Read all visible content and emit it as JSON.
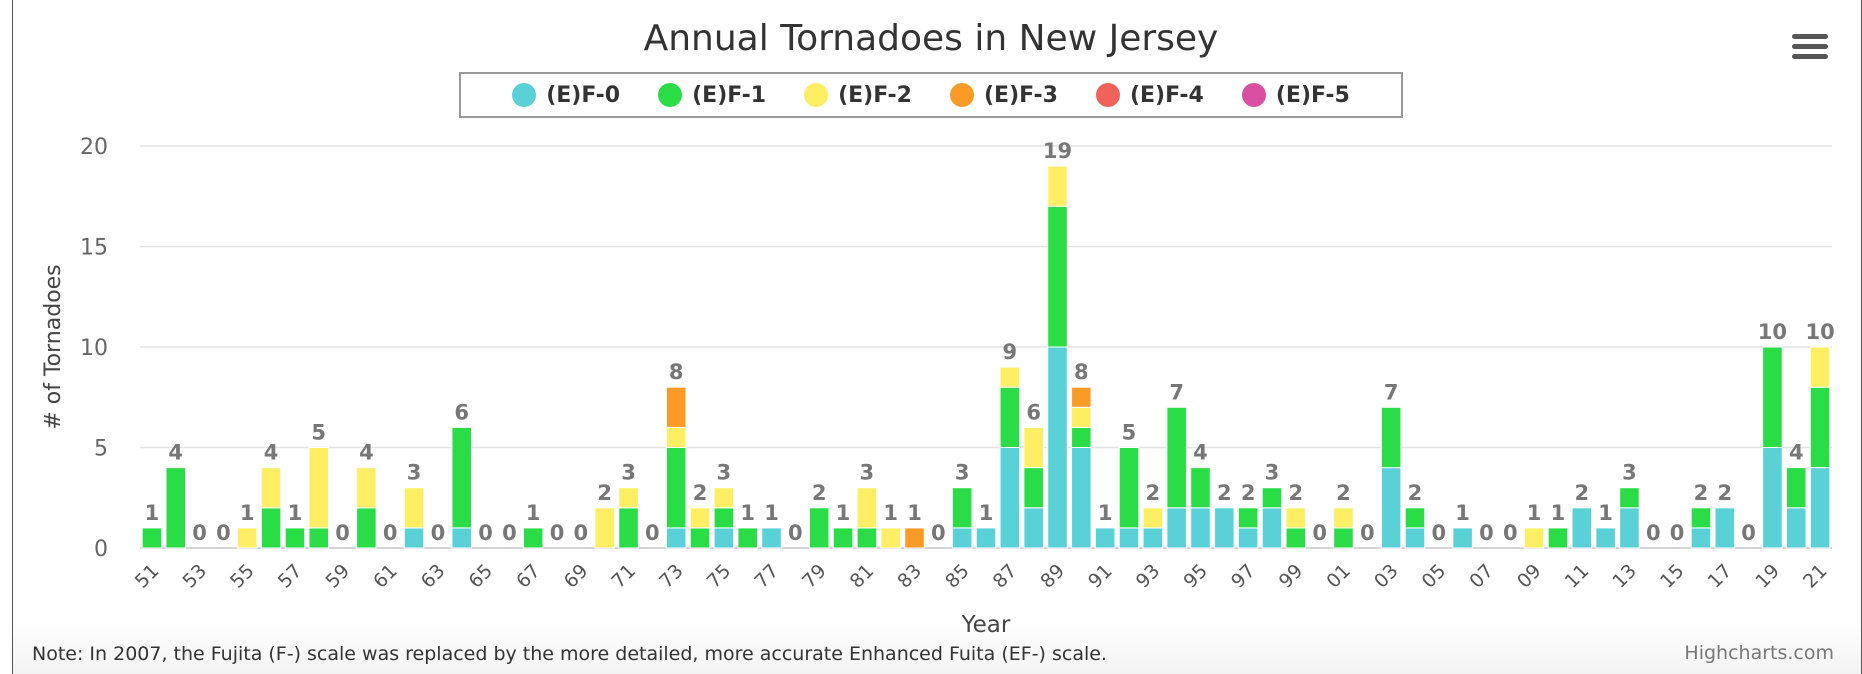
{
  "title": "Annual Tornadoes in New Jersey",
  "legend": [
    {
      "label": "(E)F-0",
      "color": "#5ad1d7"
    },
    {
      "label": "(E)F-1",
      "color": "#2adc46"
    },
    {
      "label": "(E)F-2",
      "color": "#fdee63"
    },
    {
      "label": "(E)F-3",
      "color": "#fa9a27"
    },
    {
      "label": "(E)F-4",
      "color": "#f0625a"
    },
    {
      "label": "(E)F-5",
      "color": "#d84fa4"
    }
  ],
  "menu_icon": "hamburger-menu-icon",
  "note": "Note: In 2007, the Fujita (F-) scale was replaced by the more detailed, more accurate Enhanced Fuita (EF-) scale.",
  "credits": "Highcharts.com",
  "chart_data": {
    "type": "bar",
    "stacked": true,
    "title": "Annual Tornadoes in New Jersey",
    "xlabel": "Year",
    "ylabel": "# of Tornadoes",
    "ylim": [
      0,
      20
    ],
    "yticks": [
      0,
      5,
      10,
      15,
      20
    ],
    "grid": true,
    "legend_position": "top",
    "categories": [
      "51",
      "52",
      "53",
      "54",
      "55",
      "56",
      "57",
      "58",
      "59",
      "60",
      "61",
      "62",
      "63",
      "64",
      "65",
      "66",
      "67",
      "68",
      "69",
      "70",
      "71",
      "72",
      "73",
      "74",
      "75",
      "76",
      "77",
      "78",
      "79",
      "80",
      "81",
      "82",
      "83",
      "84",
      "85",
      "86",
      "87",
      "88",
      "89",
      "90",
      "91",
      "92",
      "93",
      "94",
      "95",
      "96",
      "97",
      "98",
      "99",
      "00",
      "01",
      "02",
      "03",
      "04",
      "05",
      "06",
      "07",
      "08",
      "09",
      "10",
      "11",
      "12",
      "13",
      "14",
      "15",
      "16",
      "17",
      "18",
      "19",
      "20",
      "21"
    ],
    "xtick_labels": [
      "51",
      "53",
      "55",
      "57",
      "59",
      "61",
      "63",
      "65",
      "67",
      "69",
      "71",
      "73",
      "75",
      "77",
      "79",
      "81",
      "83",
      "85",
      "87",
      "89",
      "91",
      "93",
      "95",
      "97",
      "99",
      "01",
      "03",
      "05",
      "07",
      "09",
      "11",
      "13",
      "15",
      "17",
      "19",
      "21"
    ],
    "series": [
      {
        "name": "(E)F-0",
        "color": "#5ad1d7",
        "values": [
          0,
          0,
          0,
          0,
          0,
          0,
          0,
          0,
          0,
          0,
          0,
          1,
          0,
          1,
          0,
          0,
          0,
          0,
          0,
          0,
          0,
          0,
          1,
          0,
          1,
          0,
          1,
          0,
          0,
          0,
          0,
          0,
          0,
          0,
          1,
          1,
          5,
          2,
          10,
          5,
          1,
          1,
          1,
          2,
          2,
          2,
          1,
          2,
          0,
          0,
          0,
          0,
          4,
          1,
          0,
          1,
          0,
          0,
          0,
          0,
          2,
          1,
          2,
          0,
          0,
          1,
          2,
          0,
          5,
          2,
          4
        ]
      },
      {
        "name": "(E)F-1",
        "color": "#2adc46",
        "values": [
          1,
          4,
          0,
          0,
          0,
          2,
          1,
          1,
          0,
          2,
          0,
          0,
          0,
          5,
          0,
          0,
          1,
          0,
          0,
          0,
          2,
          0,
          4,
          1,
          1,
          1,
          0,
          0,
          2,
          1,
          1,
          0,
          0,
          0,
          2,
          0,
          3,
          2,
          7,
          1,
          0,
          4,
          0,
          5,
          2,
          0,
          1,
          1,
          1,
          0,
          1,
          0,
          3,
          1,
          0,
          0,
          0,
          0,
          0,
          1,
          0,
          0,
          1,
          0,
          0,
          1,
          0,
          0,
          5,
          2,
          4
        ]
      },
      {
        "name": "(E)F-2",
        "color": "#fdee63",
        "values": [
          0,
          0,
          0,
          0,
          1,
          2,
          0,
          4,
          0,
          2,
          0,
          2,
          0,
          0,
          0,
          0,
          0,
          0,
          0,
          2,
          1,
          0,
          1,
          1,
          1,
          0,
          0,
          0,
          0,
          0,
          2,
          1,
          0,
          0,
          0,
          0,
          1,
          2,
          2,
          1,
          0,
          0,
          1,
          0,
          0,
          0,
          0,
          0,
          1,
          0,
          1,
          0,
          0,
          0,
          0,
          0,
          0,
          0,
          1,
          0,
          0,
          0,
          0,
          0,
          0,
          0,
          0,
          0,
          0,
          0,
          2
        ]
      },
      {
        "name": "(E)F-3",
        "color": "#fa9a27",
        "values": [
          0,
          0,
          0,
          0,
          0,
          0,
          0,
          0,
          0,
          0,
          0,
          0,
          0,
          0,
          0,
          0,
          0,
          0,
          0,
          0,
          0,
          0,
          2,
          0,
          0,
          0,
          0,
          0,
          0,
          0,
          0,
          0,
          1,
          0,
          0,
          0,
          0,
          0,
          0,
          1,
          0,
          0,
          0,
          0,
          0,
          0,
          0,
          0,
          0,
          0,
          0,
          0,
          0,
          0,
          0,
          0,
          0,
          0,
          0,
          0,
          0,
          0,
          0,
          0,
          0,
          0,
          0,
          0,
          0,
          0,
          0
        ]
      },
      {
        "name": "(E)F-4",
        "color": "#f0625a",
        "values": [
          0,
          0,
          0,
          0,
          0,
          0,
          0,
          0,
          0,
          0,
          0,
          0,
          0,
          0,
          0,
          0,
          0,
          0,
          0,
          0,
          0,
          0,
          0,
          0,
          0,
          0,
          0,
          0,
          0,
          0,
          0,
          0,
          0,
          0,
          0,
          0,
          0,
          0,
          0,
          0,
          0,
          0,
          0,
          0,
          0,
          0,
          0,
          0,
          0,
          0,
          0,
          0,
          0,
          0,
          0,
          0,
          0,
          0,
          0,
          0,
          0,
          0,
          0,
          0,
          0,
          0,
          0,
          0,
          0,
          0,
          0
        ]
      },
      {
        "name": "(E)F-5",
        "color": "#d84fa4",
        "values": [
          0,
          0,
          0,
          0,
          0,
          0,
          0,
          0,
          0,
          0,
          0,
          0,
          0,
          0,
          0,
          0,
          0,
          0,
          0,
          0,
          0,
          0,
          0,
          0,
          0,
          0,
          0,
          0,
          0,
          0,
          0,
          0,
          0,
          0,
          0,
          0,
          0,
          0,
          0,
          0,
          0,
          0,
          0,
          0,
          0,
          0,
          0,
          0,
          0,
          0,
          0,
          0,
          0,
          0,
          0,
          0,
          0,
          0,
          0,
          0,
          0,
          0,
          0,
          0,
          0,
          0,
          0,
          0,
          0,
          0,
          0
        ]
      }
    ],
    "totals": [
      1,
      4,
      0,
      0,
      1,
      4,
      1,
      5,
      0,
      4,
      0,
      3,
      0,
      6,
      0,
      0,
      1,
      0,
      0,
      2,
      3,
      0,
      8,
      2,
      3,
      1,
      1,
      0,
      2,
      1,
      3,
      1,
      1,
      0,
      3,
      1,
      9,
      6,
      19,
      8,
      1,
      5,
      2,
      7,
      4,
      2,
      2,
      3,
      2,
      0,
      2,
      0,
      7,
      2,
      0,
      1,
      0,
      0,
      1,
      1,
      2,
      1,
      3,
      0,
      0,
      2,
      2,
      0,
      10,
      4,
      10
    ]
  }
}
